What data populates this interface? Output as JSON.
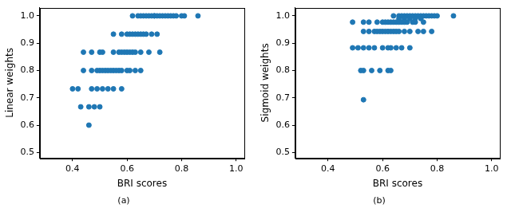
{
  "chart_data": [
    {
      "type": "scatter",
      "title": "(a)",
      "xlabel": "BRI scores",
      "ylabel": "Linear weights",
      "color": "#1f77b4",
      "grid": false,
      "xlim": [
        0.28,
        1.03
      ],
      "xticks": [
        0.4,
        0.6,
        0.8,
        {
          "value": 1,
          "label": "1.0"
        }
      ],
      "ylim": [
        0.48,
        1.03
      ],
      "yticks": [
        0.5,
        0.6,
        0.7,
        0.8,
        0.9,
        {
          "value": 1,
          "label": "1.0"
        }
      ],
      "x": [
        0.62,
        0.64,
        0.65,
        0.66,
        0.67,
        0.68,
        0.69,
        0.7,
        0.7,
        0.71,
        0.72,
        0.73,
        0.74,
        0.75,
        0.76,
        0.77,
        0.78,
        0.8,
        0.81,
        0.86,
        0.55,
        0.58,
        0.6,
        0.61,
        0.62,
        0.63,
        0.64,
        0.65,
        0.66,
        0.67,
        0.69,
        0.71,
        0.44,
        0.47,
        0.5,
        0.51,
        0.55,
        0.57,
        0.58,
        0.59,
        0.6,
        0.61,
        0.62,
        0.63,
        0.65,
        0.68,
        0.72,
        0.44,
        0.47,
        0.49,
        0.5,
        0.51,
        0.52,
        0.53,
        0.54,
        0.55,
        0.56,
        0.57,
        0.58,
        0.6,
        0.61,
        0.63,
        0.65,
        0.4,
        0.42,
        0.47,
        0.49,
        0.51,
        0.53,
        0.55,
        0.58,
        0.43,
        0.46,
        0.48,
        0.5,
        0.46
      ],
      "values": [
        1,
        1,
        1,
        1,
        1,
        1,
        1,
        1,
        1,
        1,
        1,
        1,
        1,
        1,
        1,
        1,
        1,
        1,
        1,
        1,
        0.933,
        0.933,
        0.933,
        0.933,
        0.933,
        0.933,
        0.933,
        0.933,
        0.933,
        0.933,
        0.933,
        0.933,
        0.867,
        0.867,
        0.867,
        0.867,
        0.867,
        0.867,
        0.867,
        0.867,
        0.867,
        0.867,
        0.867,
        0.867,
        0.867,
        0.867,
        0.867,
        0.8,
        0.8,
        0.8,
        0.8,
        0.8,
        0.8,
        0.8,
        0.8,
        0.8,
        0.8,
        0.8,
        0.8,
        0.8,
        0.8,
        0.8,
        0.8,
        0.733,
        0.733,
        0.733,
        0.733,
        0.733,
        0.733,
        0.733,
        0.733,
        0.667,
        0.667,
        0.667,
        0.667,
        0.6
      ]
    },
    {
      "type": "scatter",
      "title": "(b)",
      "xlabel": "BRI scores",
      "ylabel": "Sigmoid weights",
      "color": "#1f77b4",
      "grid": false,
      "xlim": [
        0.28,
        1.03
      ],
      "xticks": [
        0.4,
        0.6,
        0.8,
        {
          "value": 1,
          "label": "1.0"
        }
      ],
      "ylim": [
        0.48,
        1.03
      ],
      "yticks": [
        0.5,
        0.6,
        0.7,
        0.8,
        0.9,
        {
          "value": 1,
          "label": "1.0"
        }
      ],
      "x": [
        0.64,
        0.66,
        0.67,
        0.68,
        0.69,
        0.7,
        0.71,
        0.72,
        0.73,
        0.74,
        0.75,
        0.76,
        0.77,
        0.78,
        0.79,
        0.8,
        0.86,
        0.66,
        0.68,
        0.7,
        0.72,
        0.74,
        0.49,
        0.53,
        0.55,
        0.58,
        0.6,
        0.61,
        0.62,
        0.63,
        0.64,
        0.65,
        0.66,
        0.67,
        0.68,
        0.69,
        0.71,
        0.72,
        0.75,
        0.53,
        0.55,
        0.57,
        0.58,
        0.59,
        0.6,
        0.61,
        0.62,
        0.63,
        0.64,
        0.65,
        0.66,
        0.68,
        0.7,
        0.73,
        0.75,
        0.78,
        0.49,
        0.51,
        0.53,
        0.55,
        0.57,
        0.6,
        0.62,
        0.63,
        0.65,
        0.67,
        0.7,
        0.52,
        0.53,
        0.56,
        0.59,
        0.62,
        0.63,
        0.53
      ],
      "values": [
        1,
        1,
        1,
        1,
        1,
        1,
        1,
        1,
        1,
        1,
        1,
        1,
        1,
        1,
        1,
        1,
        1,
        0.99,
        0.99,
        0.99,
        0.99,
        0.99,
        0.977,
        0.977,
        0.977,
        0.977,
        0.977,
        0.977,
        0.977,
        0.977,
        0.977,
        0.977,
        0.977,
        0.977,
        0.977,
        0.977,
        0.977,
        0.977,
        0.977,
        0.943,
        0.943,
        0.943,
        0.943,
        0.943,
        0.943,
        0.943,
        0.943,
        0.943,
        0.943,
        0.943,
        0.943,
        0.943,
        0.943,
        0.943,
        0.943,
        0.943,
        0.883,
        0.883,
        0.883,
        0.883,
        0.883,
        0.883,
        0.883,
        0.883,
        0.883,
        0.883,
        0.883,
        0.8,
        0.8,
        0.8,
        0.8,
        0.8,
        0.8,
        0.693
      ]
    }
  ]
}
